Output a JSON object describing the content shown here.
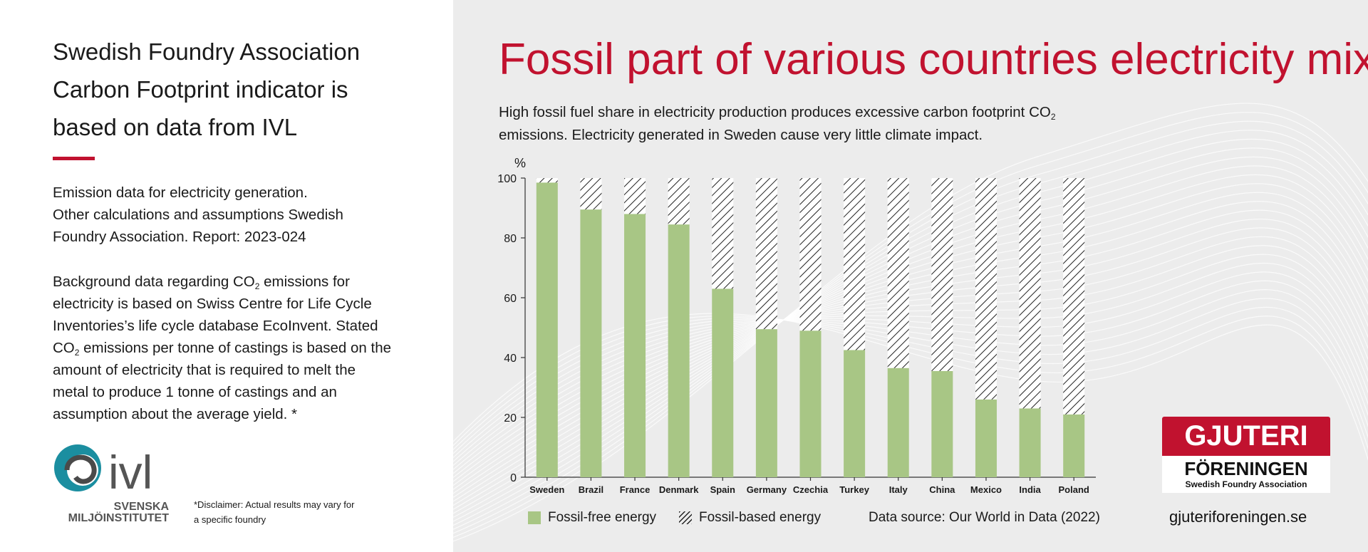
{
  "left": {
    "title_lines": [
      "Swedish Foundry Association",
      "Carbon Footprint indicator is",
      "based on data from IVL"
    ],
    "para1_lines": [
      "Emission data for electricity generation.",
      "Other calculations and assumptions Swedish",
      "Foundry Association. Report: 2023-024"
    ],
    "para2": {
      "l1a": "Background data regarding CO",
      "l1sub": "2",
      "l1b": " emissions for",
      "l2": "electricity is based on Swiss Centre for Life Cycle",
      "l3": "Inventories’s life cycle database EcoInvent. Stated",
      "l4a": "CO",
      "l4sub": "2",
      "l4b": " emissions per tonne of castings is based on the",
      "l5": "amount of electricity that is required to melt the",
      "l6": "metal to produce 1 tonne of castings and an",
      "l7": "assumption about the average yield. *"
    },
    "ivl_logo": {
      "wordmark": "ivl",
      "line1": "SVENSKA",
      "line2": "MILJÖINSTITUTET"
    },
    "disclaimer_lines": [
      "*Disclaimer: Actual results may vary for",
      "a specific foundry"
    ]
  },
  "right": {
    "subtitle": {
      "l1a": "High fossil fuel share in electricity production produces excessive carbon footprint CO",
      "l1sub": "2",
      "l2": "emissions. Electricity generated in Sweden cause very little climate impact."
    }
  },
  "brand": {
    "name1": "GJUTERI",
    "name2": "FÖRENINGEN",
    "name3": "Swedish Foundry Association",
    "website": "gjuteriforeningen.se"
  },
  "colors": {
    "accent": "#c1122f",
    "fossil_free": "#a8c685",
    "hatch": "#222222",
    "panel_bg": "#ececec"
  },
  "chart_data": {
    "type": "bar",
    "stacked": true,
    "title": "Fossil part of various countries electricity mix",
    "ylabel": "%",
    "xlabel": "",
    "ylim": [
      0,
      100
    ],
    "yticks": [
      0,
      20,
      40,
      60,
      80,
      100
    ],
    "categories": [
      "Sweden",
      "Brazil",
      "France",
      "Denmark",
      "Spain",
      "Germany",
      "Czechia",
      "Turkey",
      "Italy",
      "China",
      "Mexico",
      "India",
      "Poland"
    ],
    "series": [
      {
        "name": "Fossil-free energy",
        "values": [
          98.5,
          89.5,
          88,
          84.5,
          63,
          49.5,
          49,
          42.5,
          36.5,
          35.5,
          26,
          23,
          21
        ]
      },
      {
        "name": "Fossil-based energy",
        "values": [
          1.5,
          10.5,
          12,
          15.5,
          37,
          50.5,
          51,
          57.5,
          63.5,
          64.5,
          74,
          77,
          79
        ]
      }
    ],
    "legend_position": "bottom-left",
    "source": "Data source: Our World in Data (2022)"
  }
}
